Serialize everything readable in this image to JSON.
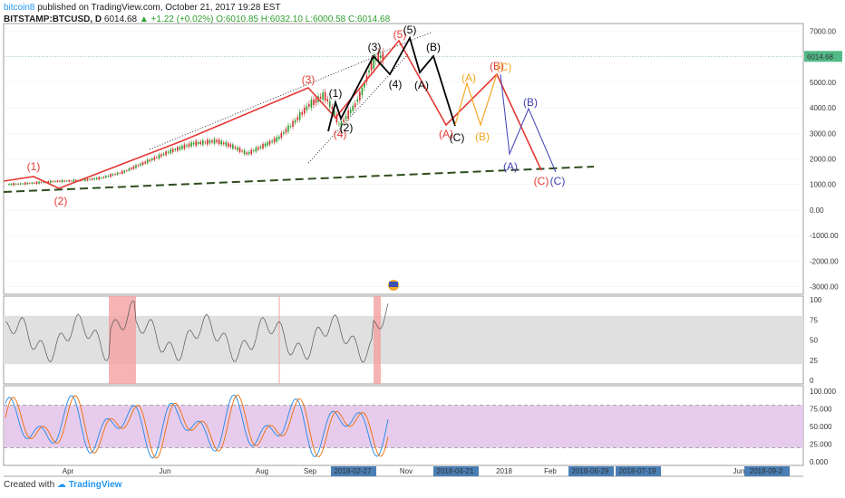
{
  "header": {
    "author": "bitcoin8",
    "published": "published on TradingView.com, October 21, 2017 19:28 EST",
    "symbol": "BITSTAMP:BTCUSD, D",
    "last": "6014.68",
    "change": "+1.22 (+0.02%)",
    "open": "O:6010.85",
    "high": "H:6032.10",
    "low": "L:6000.58",
    "close": "C:6014.68"
  },
  "footer": {
    "created": "Created with",
    "brand": "TradingView"
  },
  "colors": {
    "up": "#2e9e2e",
    "down": "#d32f2f",
    "red_wave": "#e53935",
    "black_wave": "#000000",
    "orange_wave": "#f5a623",
    "blue_wave": "#3f3fb5",
    "trend": "#2e4d1e",
    "price_tag": "#53b987",
    "stoch_fill": "#e1bee7",
    "rsi_band": "#e0e0e0"
  },
  "chart_data": {
    "type": "candlestick",
    "price_axis": {
      "ticks": [
        "7000.00",
        "6000.00",
        "5000.00",
        "4000.00",
        "3000.00",
        "2000.00",
        "1000.00",
        "0.00",
        "-1000.00",
        "-2000.00",
        "-3000.00"
      ],
      "ylim": [
        -3300,
        7300
      ],
      "current": "6014.68"
    },
    "time_axis": {
      "labels": [
        "Apr",
        "Jun",
        "Aug",
        "Sep",
        "Nov",
        "2018",
        "Feb",
        "Jun"
      ],
      "highlighted": [
        "2018-02-27",
        "2018-04-21",
        "2018-06-29",
        "2018-07-19",
        "2018-09-2"
      ]
    },
    "price_series_x_days": [
      0,
      15,
      30,
      45,
      60,
      75,
      90,
      105,
      120,
      135,
      145,
      155,
      165,
      175,
      185,
      195,
      200,
      205,
      210,
      215,
      220,
      225,
      230,
      235,
      240,
      244
    ],
    "price_series_y": [
      1000,
      1050,
      1120,
      1150,
      1250,
      1500,
      1900,
      2300,
      2600,
      2700,
      2500,
      2200,
      2500,
      2800,
      3400,
      4100,
      4300,
      4500,
      4000,
      3300,
      3700,
      4100,
      4700,
      5600,
      6000,
      6014
    ],
    "waves": {
      "red": [
        {
          "label": "(1)",
          "price": 1350
        },
        {
          "label": "(2)",
          "price": 850
        },
        {
          "label": "(3)",
          "price": 4900
        },
        {
          "label": "(4)",
          "price": 3000
        },
        {
          "label": "(5)",
          "price": 6800
        },
        {
          "label": "(A)",
          "price": 3300
        },
        {
          "label": "(B)",
          "price": 5300
        },
        {
          "label": "(C)",
          "price": 1600
        }
      ],
      "black": [
        {
          "label": "(1)",
          "price": 4300
        },
        {
          "label": "(2)",
          "price": 3100
        },
        {
          "label": "(3)",
          "price": 5900
        },
        {
          "label": "(4)",
          "price": 5300
        },
        {
          "label": "(5)",
          "price": 7000
        },
        {
          "label": "(A)",
          "price": 5100
        },
        {
          "label": "(B)",
          "price": 6100
        },
        {
          "label": "(C)",
          "price": 2900
        }
      ],
      "orange": [
        {
          "label": "(A)",
          "price": 4800
        },
        {
          "label": "(B)",
          "price": 3000
        },
        {
          "label": "(C)",
          "price": 5800
        }
      ],
      "blue": [
        {
          "label": "(A)",
          "price": 1700
        },
        {
          "label": "(B)",
          "price": 3900
        },
        {
          "label": "(C)",
          "price": 1300
        }
      ]
    },
    "rsi": {
      "ticks": [
        "100",
        "75",
        "50",
        "25",
        "0"
      ],
      "band": [
        20,
        80
      ]
    },
    "stoch": {
      "ticks": [
        "100.000",
        "75.000",
        "50.000",
        "25.000",
        "0.000"
      ],
      "band": [
        20,
        80
      ]
    }
  }
}
